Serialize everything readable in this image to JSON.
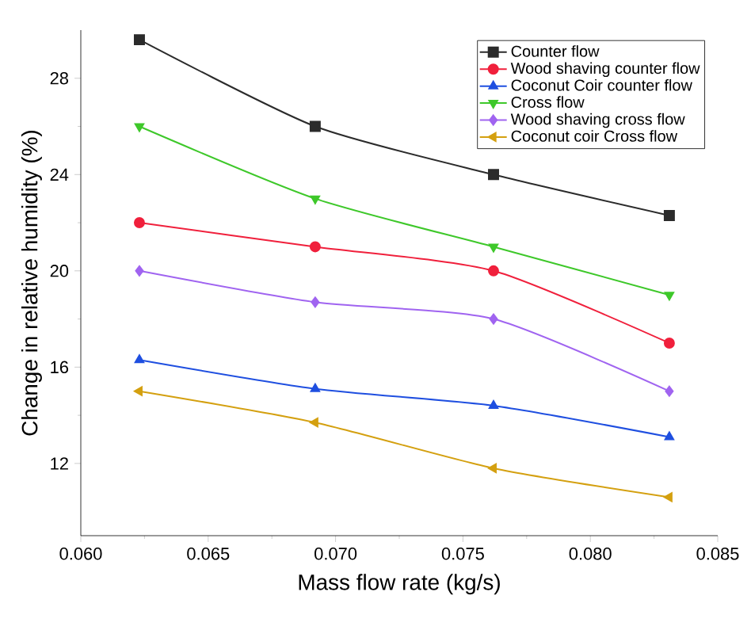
{
  "chart_data": {
    "type": "line",
    "xlabel": "Mass flow rate (kg/s)",
    "ylabel": "Change in relative humidity (%)",
    "x": [
      0.0623,
      0.0692,
      0.0762,
      0.0831
    ],
    "xlim": [
      0.06,
      0.085
    ],
    "xticks": [
      {
        "value": 0.06,
        "label": "0.060"
      },
      {
        "value": 0.065,
        "label": "0.065"
      },
      {
        "value": 0.07,
        "label": "0.070"
      },
      {
        "value": 0.075,
        "label": "0.075"
      },
      {
        "value": 0.08,
        "label": "0.080"
      },
      {
        "value": 0.085,
        "label": "0.085"
      }
    ],
    "ylim": [
      9,
      30
    ],
    "yticks": [
      12,
      16,
      20,
      24,
      28
    ],
    "legend": "top right",
    "grid": false,
    "series": [
      {
        "name": "Counter flow",
        "color": "#2b2b2b",
        "marker": "square",
        "values": [
          29.6,
          26,
          24,
          22.3
        ]
      },
      {
        "name": "Wood shaving counter flow",
        "color": "#f0203c",
        "marker": "circle",
        "values": [
          22,
          21,
          20,
          17
        ]
      },
      {
        "name": "Coconut Coir counter flow",
        "color": "#1f4fe0",
        "marker": "triangle",
        "values": [
          16.3,
          15.1,
          14.4,
          13.1
        ]
      },
      {
        "name": "Cross flow",
        "color": "#3ec82a",
        "marker": "triangle down",
        "values": [
          26,
          23,
          21,
          19
        ]
      },
      {
        "name": "Wood shaving cross flow",
        "color": "#a064f0",
        "marker": "diamond",
        "values": [
          20,
          18.7,
          18,
          15
        ]
      },
      {
        "name": "Coconut coir Cross flow",
        "color": "#d4a010",
        "marker": "triangle left",
        "values": [
          15,
          13.7,
          11.8,
          10.6
        ]
      }
    ]
  }
}
